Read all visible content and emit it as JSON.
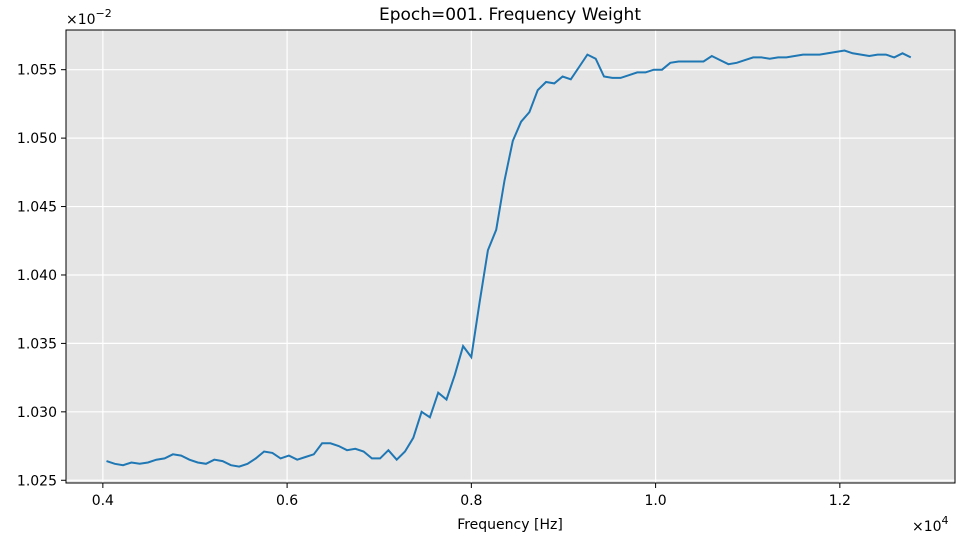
{
  "chart_data": {
    "type": "line",
    "title": "Epoch=001. Frequency Weight",
    "xlabel": "Frequency [Hz]",
    "ylabel": "",
    "x_multiplier_label": "×10",
    "x_multiplier_exp": "4",
    "y_multiplier_label": "×10",
    "y_multiplier_exp": "−2",
    "xlim": [
      0.36,
      1.325
    ],
    "ylim": [
      1.0248,
      1.0579
    ],
    "xticks": [
      0.4,
      0.6,
      0.8,
      1.0,
      1.2
    ],
    "xtick_labels": [
      "0.4",
      "0.6",
      "0.8",
      "1.0",
      "1.2"
    ],
    "yticks": [
      1.025,
      1.03,
      1.035,
      1.04,
      1.045,
      1.05,
      1.055
    ],
    "ytick_labels": [
      "1.025",
      "1.030",
      "1.035",
      "1.040",
      "1.045",
      "1.050",
      "1.055"
    ],
    "grid": true,
    "background_color": "#e5e5e5",
    "grid_color": "#ffffff",
    "series": [
      {
        "color": "#1f77b4",
        "x": [
          0.404,
          0.413,
          0.422,
          0.431,
          0.44,
          0.449,
          0.458,
          0.467,
          0.476,
          0.485,
          0.494,
          0.503,
          0.512,
          0.521,
          0.53,
          0.539,
          0.548,
          0.557,
          0.566,
          0.575,
          0.584,
          0.593,
          0.602,
          0.611,
          0.62,
          0.629,
          0.638,
          0.647,
          0.656,
          0.665,
          0.674,
          0.683,
          0.692,
          0.701,
          0.71,
          0.719,
          0.728,
          0.737,
          0.746,
          0.755,
          0.764,
          0.773,
          0.782,
          0.791,
          0.8,
          0.809,
          0.818,
          0.827,
          0.836,
          0.845,
          0.854,
          0.863,
          0.872,
          0.881,
          0.89,
          0.899,
          0.908,
          0.917,
          0.926,
          0.935,
          0.944,
          0.953,
          0.962,
          0.971,
          0.98,
          0.989,
          0.998,
          1.007,
          1.016,
          1.025,
          1.034,
          1.043,
          1.052,
          1.061,
          1.07,
          1.079,
          1.088,
          1.097,
          1.106,
          1.115,
          1.124,
          1.133,
          1.142,
          1.151,
          1.16,
          1.169,
          1.178,
          1.187,
          1.196,
          1.205,
          1.214,
          1.223,
          1.232,
          1.241,
          1.25,
          1.259,
          1.268,
          1.277
        ],
        "y": [
          1.0264,
          1.0262,
          1.0261,
          1.0263,
          1.0262,
          1.0263,
          1.0265,
          1.0266,
          1.0269,
          1.0268,
          1.0265,
          1.0263,
          1.0262,
          1.0265,
          1.0264,
          1.0261,
          1.026,
          1.0262,
          1.0266,
          1.0271,
          1.027,
          1.0266,
          1.0268,
          1.0265,
          1.0267,
          1.0269,
          1.0277,
          1.0277,
          1.0275,
          1.0272,
          1.0273,
          1.0271,
          1.0266,
          1.0266,
          1.0272,
          1.0265,
          1.0271,
          1.0281,
          1.03,
          1.0296,
          1.0314,
          1.0309,
          1.0327,
          1.0348,
          1.034,
          1.038,
          1.0418,
          1.0433,
          1.0469,
          1.0498,
          1.0512,
          1.0519,
          1.0535,
          1.0541,
          1.054,
          1.0545,
          1.0543,
          1.0552,
          1.0561,
          1.0558,
          1.0545,
          1.0544,
          1.0544,
          1.0546,
          1.0548,
          1.0548,
          1.055,
          1.055,
          1.0555,
          1.0556,
          1.0556,
          1.0556,
          1.0556,
          1.056,
          1.0557,
          1.0554,
          1.0555,
          1.0557,
          1.0559,
          1.0559,
          1.0558,
          1.0559,
          1.0559,
          1.056,
          1.0561,
          1.0561,
          1.0561,
          1.0562,
          1.0563,
          1.0564,
          1.0562,
          1.0561,
          1.056,
          1.0561,
          1.0561,
          1.0559,
          1.0562,
          1.0559
        ]
      }
    ]
  }
}
